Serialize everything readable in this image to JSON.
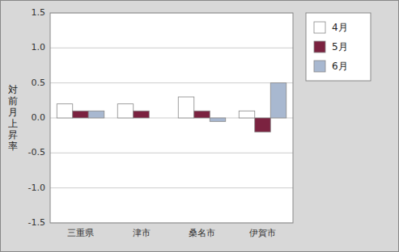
{
  "chart_data": {
    "type": "bar",
    "categories": [
      "三重県",
      "津市",
      "桑名市",
      "伊賀市"
    ],
    "series": [
      {
        "name": "4月",
        "color": "#ffffff",
        "values": [
          0.2,
          0.2,
          0.3,
          0.1
        ]
      },
      {
        "name": "5月",
        "color": "#7b2240",
        "values": [
          0.1,
          0.1,
          0.1,
          -0.2
        ]
      },
      {
        "name": "6月",
        "color": "#a8b8d0",
        "values": [
          0.1,
          0.0,
          -0.05,
          0.5
        ]
      }
    ],
    "ylabel": "対\n前\n月\n上\n昇\n率",
    "ylim": [
      -1.5,
      1.5
    ],
    "yticks": [
      -1.5,
      {
        "value": -1.0,
        "label": "-1.0"
      },
      -0.5,
      {
        "value": 0.0,
        "label": "0.0"
      },
      0.5,
      {
        "value": 1.0,
        "label": "1.0"
      },
      1.5
    ],
    "grid": true,
    "legend": "right"
  }
}
